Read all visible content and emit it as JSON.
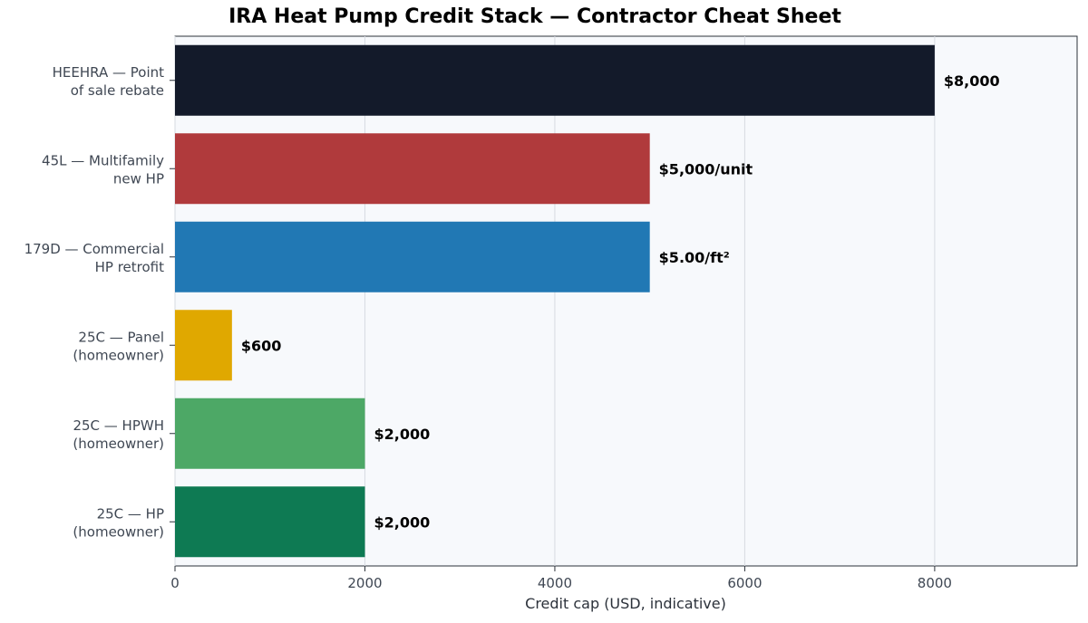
{
  "chart_data": {
    "type": "bar",
    "orientation": "horizontal",
    "title": "IRA Heat Pump Credit Stack — Contractor Cheat Sheet",
    "xlabel": "Credit cap (USD, indicative)",
    "ylabel": "",
    "xlim": [
      0,
      9500
    ],
    "xticks": [
      0,
      2000,
      4000,
      6000,
      8000
    ],
    "grid": "vertical",
    "categories": [
      [
        "25C — HP",
        "(homeowner)"
      ],
      [
        "25C — HPWH",
        "(homeowner)"
      ],
      [
        "25C — Panel",
        "(homeowner)"
      ],
      [
        "179D — Commercial",
        "HP retrofit"
      ],
      [
        "45L — Multifamily",
        "new HP"
      ],
      [
        "HEEHRA — Point",
        "of sale rebate"
      ]
    ],
    "values": [
      2000,
      2000,
      600,
      5000,
      5000,
      8000
    ],
    "value_labels": [
      "$2,000",
      "$2,000",
      "$600",
      "$5.00/ft²",
      "$5,000/unit",
      "$8,000"
    ],
    "colors": [
      "#0e7a53",
      "#4da866",
      "#e0a800",
      "#2178b4",
      "#b03a3c",
      "#131a2a"
    ]
  }
}
